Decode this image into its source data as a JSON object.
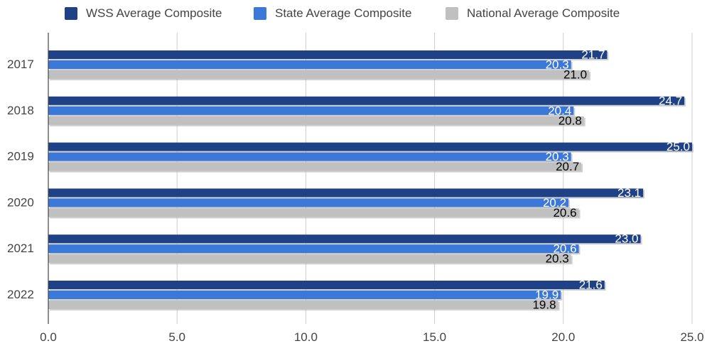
{
  "chart_data": {
    "type": "bar",
    "orientation": "horizontal",
    "categories": [
      "2017",
      "2018",
      "2019",
      "2020",
      "2021",
      "2022"
    ],
    "series": [
      {
        "name": "WSS Average Composite",
        "color": "#1f4287",
        "label_color": "#ffffff",
        "values": [
          21.7,
          24.7,
          25.0,
          23.1,
          23.0,
          21.6
        ],
        "labels": [
          "21.7",
          "24.7",
          "25.0",
          "23.1",
          "23.0",
          "21.6"
        ]
      },
      {
        "name": "State Average Composite",
        "color": "#3c78d8",
        "label_color": "#ffffff",
        "values": [
          20.3,
          20.4,
          20.3,
          20.2,
          20.6,
          19.9
        ],
        "labels": [
          "20.3",
          "20.4",
          "20.3",
          "20.2",
          "20.6",
          "19.9"
        ]
      },
      {
        "name": "National Average Composite",
        "color": "#c0c0c0",
        "label_color": "#000000",
        "values": [
          21.0,
          20.8,
          20.7,
          20.6,
          20.3,
          19.8
        ],
        "labels": [
          "21.0",
          "20.8",
          "20.7",
          "20.6",
          "20.3",
          "19.8"
        ]
      }
    ],
    "xlim": [
      0,
      25
    ],
    "xticks": [
      "0.0",
      "5.0",
      "10.0",
      "15.0",
      "20.0",
      "25.0"
    ],
    "grid": true,
    "legend_position": "top",
    "title": "",
    "xlabel": "",
    "ylabel": ""
  }
}
